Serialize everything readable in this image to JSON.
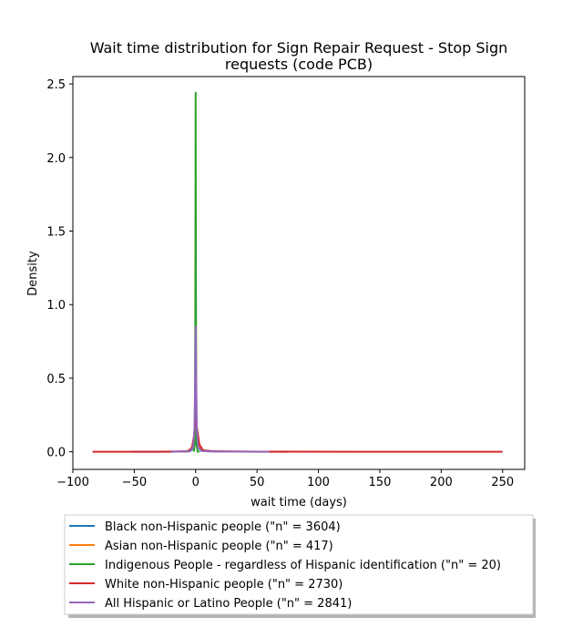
{
  "chart_data": {
    "type": "line",
    "title": "Wait time distribution  for Sign Repair Request - Stop Sign requests (code PCB)",
    "title_lines": [
      "Wait time distribution  for Sign Repair Request - Stop Sign",
      "requests (code PCB)"
    ],
    "xlabel": "wait time (days)",
    "ylabel": "Density",
    "xlim": [
      -100,
      268
    ],
    "ylim": [
      -0.12,
      2.55
    ],
    "xticks": [
      -100,
      -50,
      0,
      50,
      100,
      150,
      200,
      250
    ],
    "yticks": [
      0.0,
      0.5,
      1.0,
      1.5,
      2.0,
      2.5
    ],
    "grid": false,
    "legend_position": "below plot",
    "series": [
      {
        "name": "Black non-Hispanic people (\"n\" = 3604)",
        "color": "#1f77b4",
        "points": [
          [
            -52,
            0.0
          ],
          [
            -20,
            0.0
          ],
          [
            -5,
            0.002
          ],
          [
            -2,
            0.02
          ],
          [
            -1,
            0.08
          ],
          [
            -0.5,
            0.18
          ],
          [
            0,
            0.34
          ],
          [
            0.5,
            0.2
          ],
          [
            1,
            0.1
          ],
          [
            2,
            0.03
          ],
          [
            4,
            0.008
          ],
          [
            10,
            0.003
          ],
          [
            30,
            0.001
          ],
          [
            75,
            0.0
          ]
        ]
      },
      {
        "name": "Asian non-Hispanic people (\"n\" = 417)",
        "color": "#ff7f0e",
        "points": [
          [
            -25,
            0.0
          ],
          [
            -8,
            0.002
          ],
          [
            -3,
            0.02
          ],
          [
            -1.5,
            0.08
          ],
          [
            0,
            0.22
          ],
          [
            1.5,
            0.08
          ],
          [
            3,
            0.02
          ],
          [
            8,
            0.004
          ],
          [
            30,
            0.001
          ],
          [
            75,
            0.0
          ]
        ]
      },
      {
        "name": "Indigenous People - regardless of Hispanic identification (\"n\" = 20)",
        "color": "#2ca02c",
        "points": [
          [
            -1.5,
            0.0
          ],
          [
            -0.7,
            0.05
          ],
          [
            -0.3,
            0.9
          ],
          [
            0,
            2.44
          ],
          [
            0.3,
            0.9
          ],
          [
            0.7,
            0.05
          ],
          [
            1.5,
            0.0
          ],
          [
            3,
            0.0
          ]
        ]
      },
      {
        "name": "White non-Hispanic people (\"n\" = 2730)",
        "color": "#d62728",
        "points": [
          [
            -84,
            0.0
          ],
          [
            -30,
            0.0
          ],
          [
            -6,
            0.003
          ],
          [
            -3,
            0.03
          ],
          [
            -1.5,
            0.1
          ],
          [
            0,
            0.22
          ],
          [
            1.5,
            0.14
          ],
          [
            3,
            0.05
          ],
          [
            6,
            0.01
          ],
          [
            15,
            0.003
          ],
          [
            50,
            0.001
          ],
          [
            150,
            0.0
          ],
          [
            250,
            0.0
          ]
        ]
      },
      {
        "name": "All Hispanic or Latino People (\"n\" = 2841)",
        "color": "#9467bd",
        "points": [
          [
            -20,
            0.0
          ],
          [
            -5,
            0.003
          ],
          [
            -2,
            0.03
          ],
          [
            -1,
            0.15
          ],
          [
            -0.4,
            0.5
          ],
          [
            0,
            0.85
          ],
          [
            0.4,
            0.5
          ],
          [
            1,
            0.15
          ],
          [
            2,
            0.03
          ],
          [
            5,
            0.005
          ],
          [
            20,
            0.001
          ],
          [
            60,
            0.0
          ]
        ]
      }
    ]
  }
}
